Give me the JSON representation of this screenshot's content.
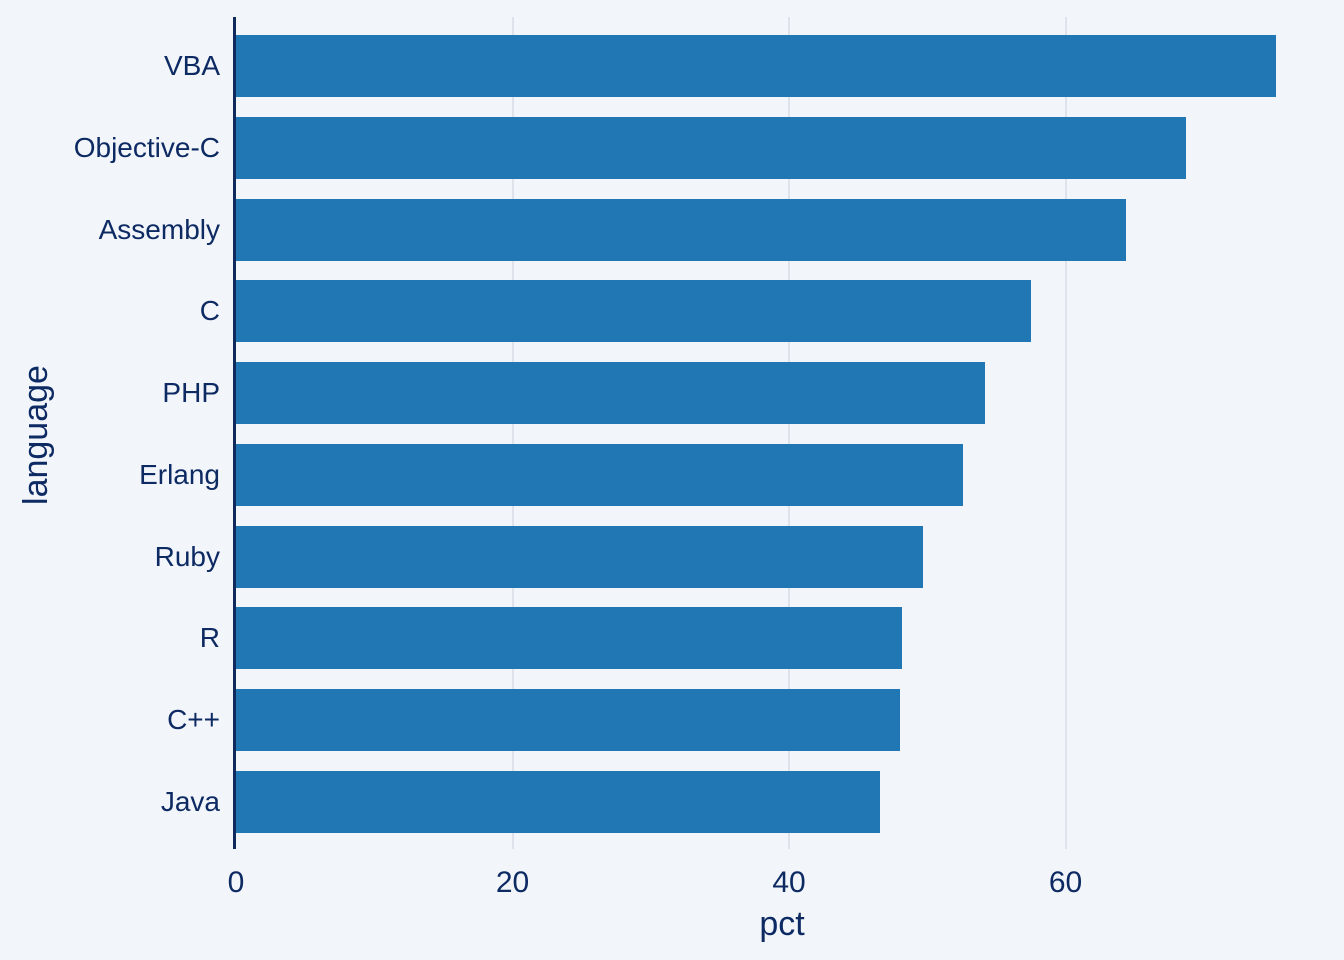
{
  "chart_data": {
    "type": "bar",
    "orientation": "horizontal",
    "title": "",
    "xlabel": "pct",
    "ylabel": "language",
    "categories": [
      "VBA",
      "Objective-C",
      "Assembly",
      "C",
      "PHP",
      "Erlang",
      "Ruby",
      "R",
      "C++",
      "Java"
    ],
    "values": [
      75.2,
      68.7,
      64.4,
      57.5,
      54.2,
      52.6,
      49.7,
      48.2,
      48.0,
      46.6
    ],
    "x_ticks": [
      0,
      20,
      40,
      60
    ],
    "xlim": [
      0,
      80.2
    ],
    "grid": "vertical-gridlines-on",
    "legend": "none",
    "colors": {
      "bar": "#2077b4",
      "background": "#f2f5fa",
      "gridline": "#dde2eb",
      "axis_line": "#0f2b5b",
      "text": "#0d2a63"
    }
  }
}
